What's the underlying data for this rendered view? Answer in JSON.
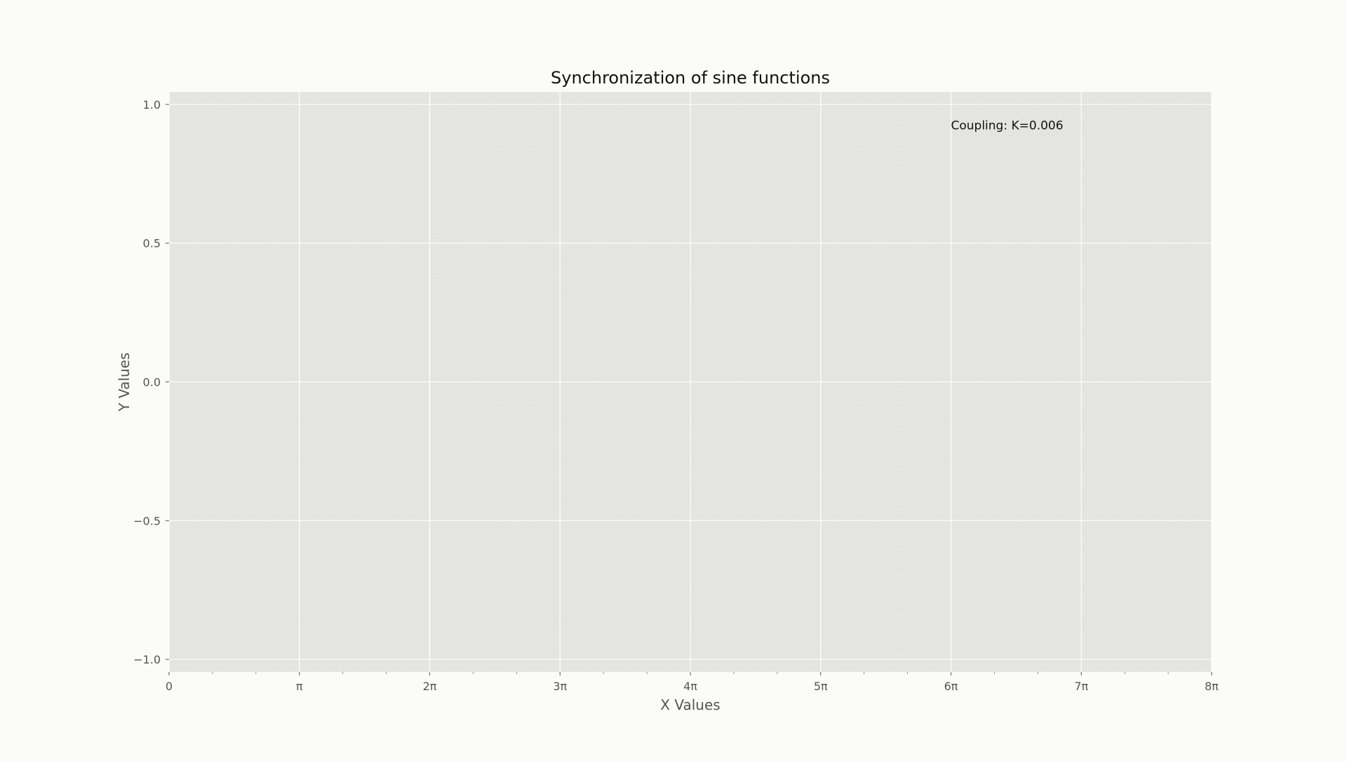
{
  "chart_data": {
    "type": "line",
    "title": "Synchronization of sine functions",
    "xlabel": "X Values",
    "ylabel": "Y Values",
    "xlim": [
      0,
      25.1327
    ],
    "ylim": [
      -1.045,
      1.045
    ],
    "x_ticks": [
      {
        "value": 0,
        "label": "0"
      },
      {
        "value": 3.14159,
        "label": "π"
      },
      {
        "value": 6.28319,
        "label": "2π"
      },
      {
        "value": 9.42478,
        "label": "3π"
      },
      {
        "value": 12.56637,
        "label": "4π"
      },
      {
        "value": 15.70796,
        "label": "5π"
      },
      {
        "value": 18.84956,
        "label": "6π"
      },
      {
        "value": 21.99115,
        "label": "7π"
      },
      {
        "value": 25.13274,
        "label": "8π"
      }
    ],
    "x_minor_tick_step": 1.0472,
    "y_ticks": [
      {
        "value": 1.0,
        "label": "1.0"
      },
      {
        "value": 0.5,
        "label": "0.5"
      },
      {
        "value": 0.0,
        "label": "0.0"
      },
      {
        "value": -0.5,
        "label": "−0.5"
      },
      {
        "value": -1.0,
        "label": "−1.0"
      }
    ],
    "grid": true,
    "series": [],
    "annotations": [
      {
        "text": "Coupling: K=0.006",
        "x": 18.84956,
        "y": 0.91
      }
    ],
    "colors": {
      "figure_background": "#fbfbf9",
      "plot_background": "#e6e6e4",
      "grid": "#ffffff",
      "text": "#111111",
      "axis_text": "#555555"
    }
  }
}
